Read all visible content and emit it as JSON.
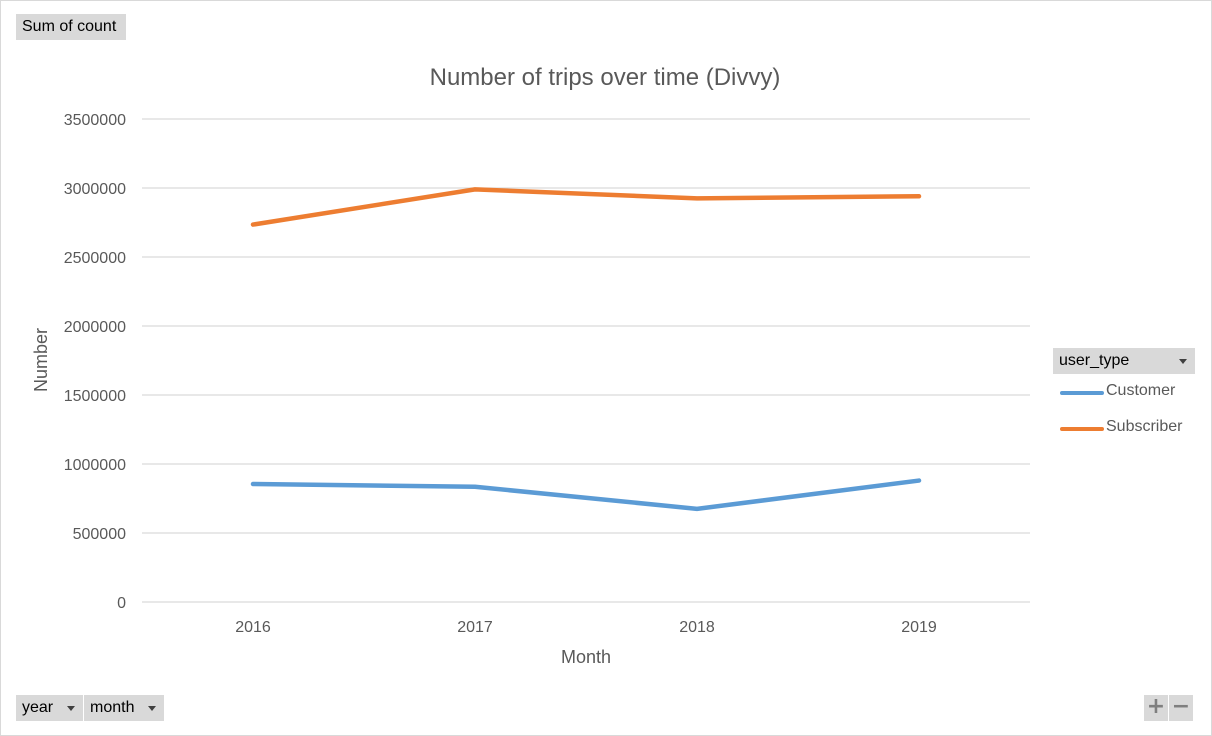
{
  "buttons": {
    "values_field": "Sum of count",
    "legend_field": "user_type",
    "axis_fields": [
      "year",
      "month"
    ],
    "zoom_in": "+",
    "zoom_out": "−"
  },
  "chart_data": {
    "type": "line",
    "title": "Number of trips over time (Divvy)",
    "xlabel": "Month",
    "ylabel": "Number",
    "categories": [
      "2016",
      "2017",
      "2018",
      "2019"
    ],
    "ylim": [
      0,
      3500000
    ],
    "yticks": [
      "0",
      "500000",
      "1000000",
      "1500000",
      "2000000",
      "2500000",
      "3000000",
      "3500000"
    ],
    "grid": true,
    "legend_position": "right",
    "series": [
      {
        "name": "Customer",
        "color": "#5b9bd5",
        "values": [
          855000,
          835000,
          675000,
          880000
        ]
      },
      {
        "name": "Subscriber",
        "color": "#ed7d31",
        "values": [
          2735000,
          2990000,
          2925000,
          2940000
        ]
      }
    ]
  }
}
